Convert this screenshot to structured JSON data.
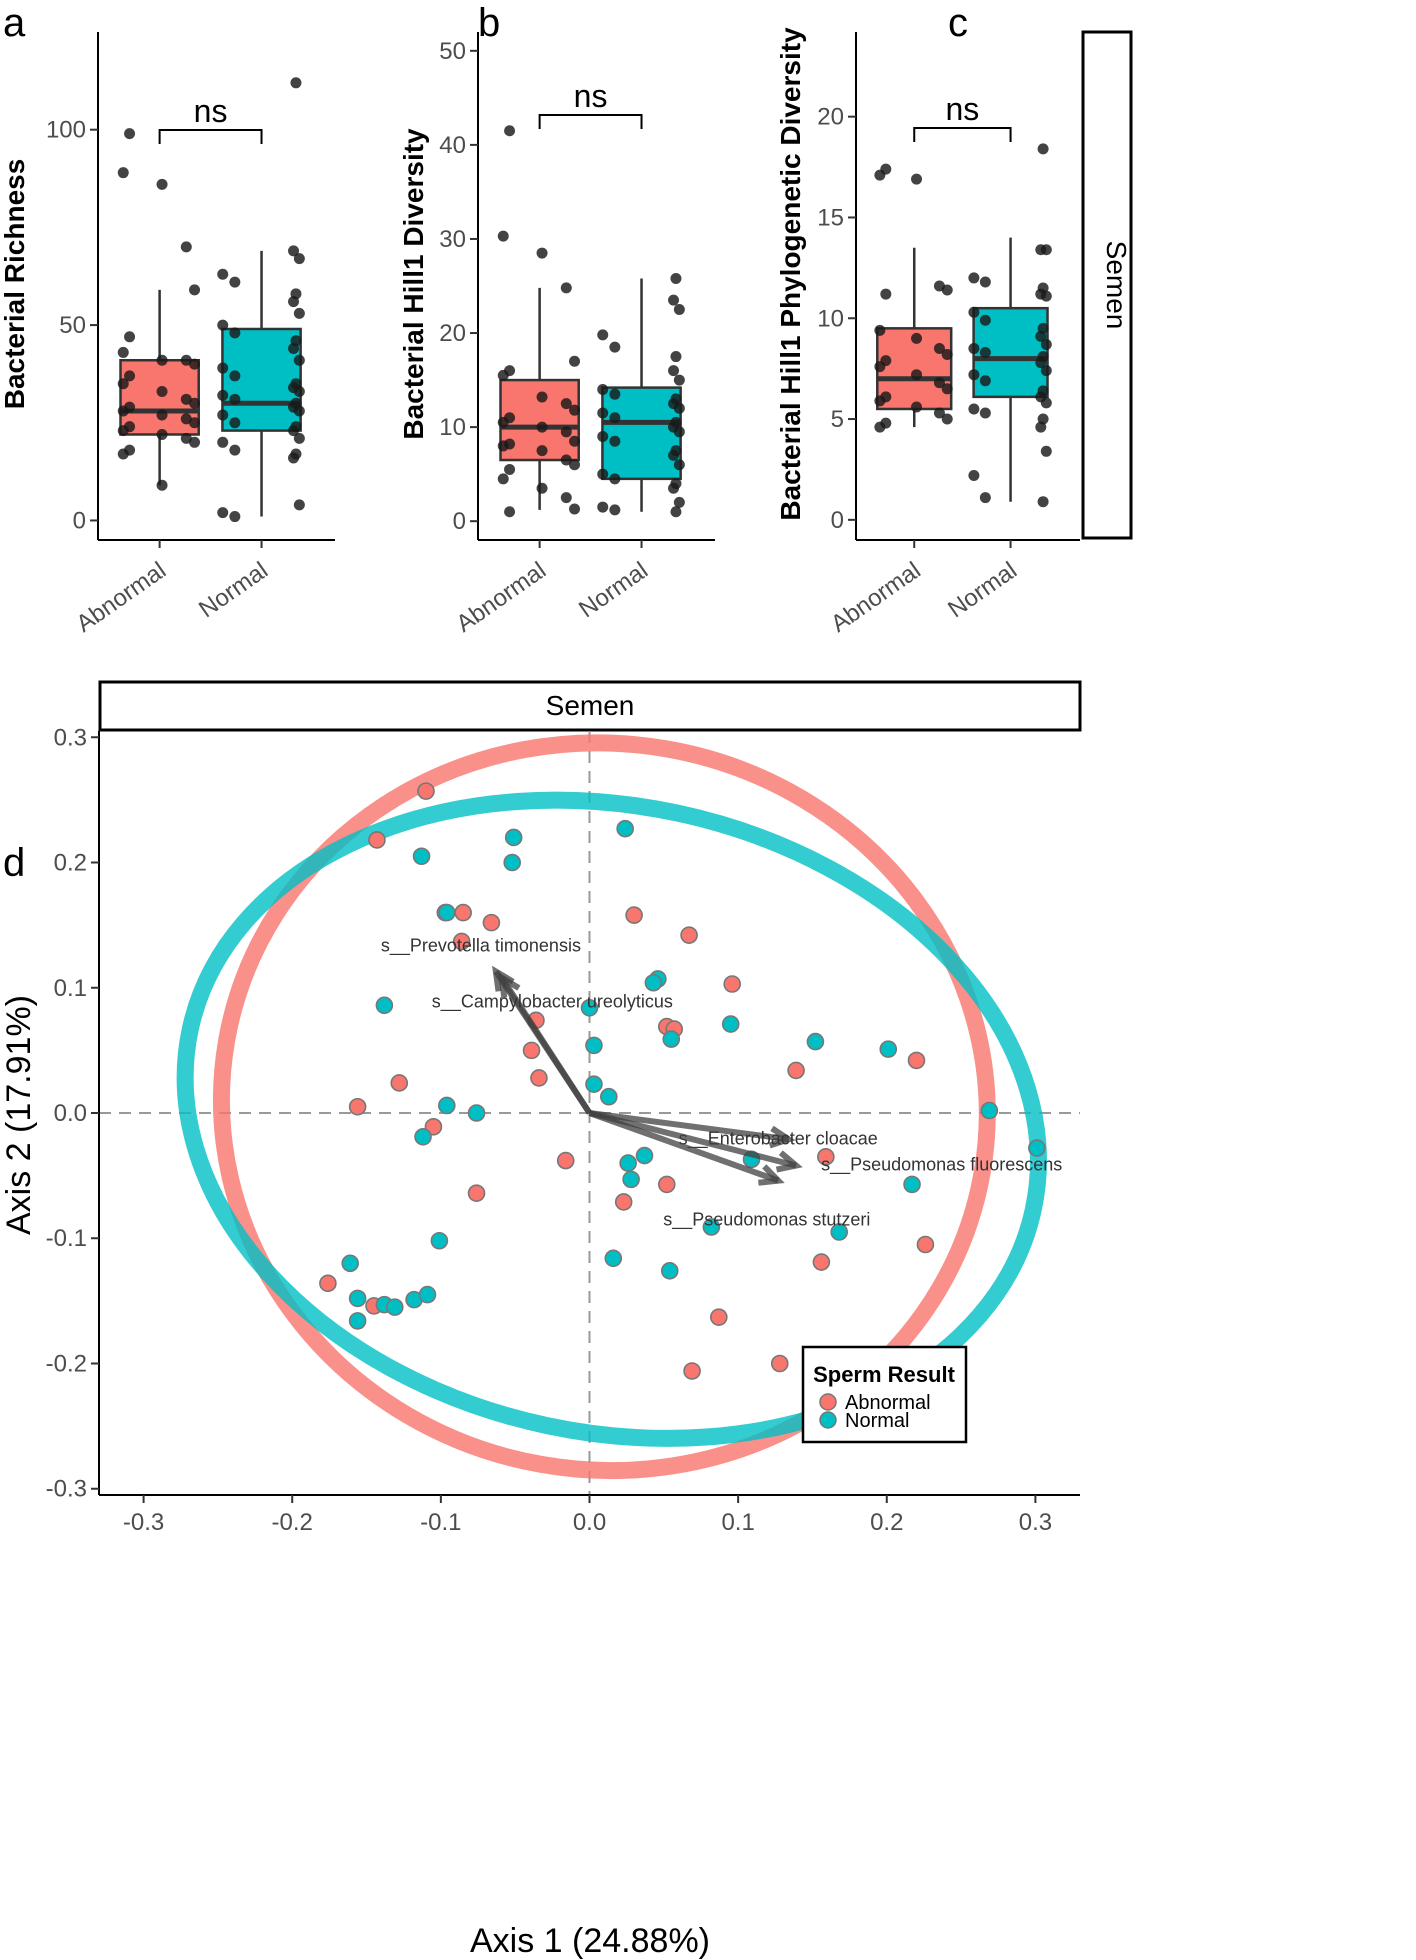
{
  "panels": {
    "a": "a",
    "b": "b",
    "c": "c",
    "d": "d"
  },
  "colors": {
    "abnormal": "#F8766D",
    "normal": "#00BFC4",
    "point": "#1a1a1a",
    "arrow": "#404040"
  },
  "chart_data": [
    {
      "type": "box",
      "panel": "a",
      "ylabel": "Bacterial Richness",
      "ylim": [
        -5,
        125
      ],
      "yticks": [
        0,
        50,
        100
      ],
      "categories": [
        "Abnormal",
        "Normal"
      ],
      "significance": "ns",
      "boxes": [
        {
          "name": "Abnormal",
          "q1": 22,
          "median": 28,
          "q3": 41,
          "whisker_low": 9,
          "whisker_high": 59
        },
        {
          "name": "Normal",
          "q1": 23,
          "median": 30,
          "q3": 49,
          "whisker_low": 1,
          "whisker_high": 69
        }
      ],
      "points": [
        [
          99,
          89,
          86,
          70,
          59,
          47,
          43,
          41,
          41,
          40,
          37,
          35,
          33,
          31,
          30,
          29,
          28,
          27,
          26,
          25,
          24,
          23,
          22,
          21,
          20,
          18,
          17,
          9
        ],
        [
          112,
          69,
          67,
          63,
          61,
          58,
          56,
          53,
          50,
          48,
          46,
          44,
          41,
          39,
          37,
          35,
          34,
          33,
          32,
          31,
          30,
          29,
          28,
          27,
          25,
          24,
          23,
          21,
          20,
          18,
          17,
          16,
          4,
          2,
          1
        ]
      ]
    },
    {
      "type": "box",
      "panel": "b",
      "ylabel": "Bacterial Hill1 Diversity",
      "ylim": [
        -2,
        52
      ],
      "yticks": [
        0,
        10,
        20,
        30,
        40,
        50
      ],
      "categories": [
        "Abnormal",
        "Normal"
      ],
      "significance": "ns",
      "boxes": [
        {
          "name": "Abnormal",
          "q1": 6.5,
          "median": 10,
          "q3": 15,
          "whisker_low": 1.2,
          "whisker_high": 24.8
        },
        {
          "name": "Normal",
          "q1": 4.5,
          "median": 10.5,
          "q3": 14.2,
          "whisker_low": 1,
          "whisker_high": 25.8
        }
      ],
      "points": [
        [
          41.5,
          30.3,
          28.5,
          24.8,
          17,
          16,
          15.5,
          13.2,
          12.5,
          11.8,
          11,
          10.5,
          10,
          9.5,
          8.5,
          8.2,
          8,
          7.5,
          6.5,
          6,
          5.5,
          4.5,
          3.5,
          2.5,
          1.3,
          1
        ],
        [
          25.8,
          23.5,
          22.5,
          19.8,
          18.5,
          17.5,
          16,
          15,
          14,
          13.5,
          13,
          12.5,
          12,
          11.5,
          11,
          10.5,
          10,
          9.5,
          9,
          8.5,
          7.5,
          7,
          6,
          5,
          4.5,
          4,
          3.5,
          2,
          1.5,
          1.2,
          1
        ]
      ]
    },
    {
      "type": "box",
      "panel": "c",
      "ylabel": "Bacterial Hill1 Phylogenetic Diversity",
      "ylim": [
        -1,
        24.2
      ],
      "yticks": [
        0,
        5,
        10,
        15,
        20
      ],
      "categories": [
        "Abnormal",
        "Normal"
      ],
      "significance": "ns",
      "strip": "Semen",
      "boxes": [
        {
          "name": "Abnormal",
          "q1": 5.5,
          "median": 7,
          "q3": 9.5,
          "whisker_low": 4.6,
          "whisker_high": 13.5
        },
        {
          "name": "Normal",
          "q1": 6.1,
          "median": 8,
          "q3": 10.5,
          "whisker_low": 0.9,
          "whisker_high": 14
        }
      ],
      "points": [
        [
          17.4,
          17.1,
          16.9,
          11.6,
          11.4,
          11.2,
          9.4,
          9,
          8.5,
          8.2,
          7.9,
          7.6,
          7.2,
          6.8,
          6.5,
          6.1,
          5.9,
          5.6,
          5.3,
          5,
          4.8,
          4.6
        ],
        [
          18.4,
          13.4,
          13.4,
          12,
          11.8,
          11.5,
          11.2,
          11.1,
          10.3,
          9.9,
          9.5,
          9.1,
          8.7,
          8.5,
          8.3,
          8.1,
          7.8,
          7.4,
          7.2,
          6.9,
          6.4,
          6.1,
          5.8,
          5.5,
          5.3,
          5,
          4.6,
          3.4,
          2.2,
          1.1,
          0.9
        ]
      ]
    },
    {
      "type": "scatter",
      "panel": "d",
      "strip": "Semen",
      "xlabel": "Axis 1 (24.88%)",
      "ylabel": "Axis 2 (17.91%)",
      "xlim": [
        -0.33,
        0.33
      ],
      "ylim": [
        -0.305,
        0.305
      ],
      "xticks": [
        -0.3,
        -0.2,
        -0.1,
        0.0,
        0.1,
        0.2,
        0.3
      ],
      "xtick_labels": [
        "-0.3",
        "-0.2",
        "-0.1",
        "0.0",
        "0.1",
        "0.2",
        "0.3"
      ],
      "yticks": [
        -0.3,
        -0.2,
        -0.1,
        0.0,
        0.1,
        0.2,
        0.3
      ],
      "ytick_labels": [
        "-0.3",
        "-0.2",
        "-0.1",
        "0.0",
        "0.1",
        "0.2",
        "0.3"
      ],
      "legend": {
        "title": "Sperm Result",
        "entries": [
          "Abnormal",
          "Normal"
        ],
        "placement": "bottom-right"
      },
      "ellipses": [
        {
          "name": "Abnormal",
          "cx": 0.01,
          "cy": 0.005,
          "rx": 0.258,
          "ry": 0.29,
          "angle": 10
        },
        {
          "name": "Normal",
          "cx": 0.015,
          "cy": -0.005,
          "rx": 0.29,
          "ry": 0.25,
          "angle": 12
        }
      ],
      "series": [
        {
          "name": "Abnormal",
          "points": [
            [
              -0.11,
              0.257
            ],
            [
              -0.143,
              0.218
            ],
            [
              -0.085,
              0.16
            ],
            [
              -0.097,
              0.16
            ],
            [
              -0.086,
              0.137
            ],
            [
              -0.066,
              0.152
            ],
            [
              -0.036,
              0.074
            ],
            [
              -0.039,
              0.05
            ],
            [
              -0.034,
              0.028
            ],
            [
              -0.128,
              0.024
            ],
            [
              -0.156,
              0.005
            ],
            [
              -0.076,
              -0.064
            ],
            [
              -0.016,
              -0.038
            ],
            [
              -0.176,
              -0.136
            ],
            [
              -0.145,
              -0.154
            ],
            [
              0.03,
              0.158
            ],
            [
              0.067,
              0.142
            ],
            [
              0.096,
              0.103
            ],
            [
              0.052,
              0.069
            ],
            [
              0.057,
              0.067
            ],
            [
              0.139,
              0.034
            ],
            [
              0.159,
              -0.035
            ],
            [
              0.22,
              0.042
            ],
            [
              0.226,
              -0.105
            ],
            [
              0.052,
              -0.057
            ],
            [
              0.023,
              -0.071
            ],
            [
              0.087,
              -0.163
            ],
            [
              0.069,
              -0.206
            ],
            [
              0.128,
              -0.2
            ],
            [
              0.156,
              -0.119
            ],
            [
              -0.105,
              -0.011
            ]
          ]
        },
        {
          "name": "Normal",
          "points": [
            [
              -0.113,
              0.205
            ],
            [
              -0.051,
              0.22
            ],
            [
              -0.052,
              0.2
            ],
            [
              -0.096,
              0.16
            ],
            [
              -0.138,
              0.086
            ],
            [
              -0.096,
              0.006
            ],
            [
              -0.076,
              0.0
            ],
            [
              -0.112,
              -0.019
            ],
            [
              -0.101,
              -0.102
            ],
            [
              -0.161,
              -0.12
            ],
            [
              -0.156,
              -0.148
            ],
            [
              -0.156,
              -0.166
            ],
            [
              -0.138,
              -0.153
            ],
            [
              -0.118,
              -0.149
            ],
            [
              -0.109,
              -0.145
            ],
            [
              -0.131,
              -0.155
            ],
            [
              0.024,
              0.227
            ],
            [
              0.046,
              0.107
            ],
            [
              0.043,
              0.104
            ],
            [
              0.0,
              0.084
            ],
            [
              0.003,
              0.054
            ],
            [
              0.055,
              0.059
            ],
            [
              0.095,
              0.071
            ],
            [
              0.152,
              0.057
            ],
            [
              0.201,
              0.051
            ],
            [
              0.003,
              0.023
            ],
            [
              0.013,
              0.013
            ],
            [
              0.269,
              0.002
            ],
            [
              0.301,
              -0.028
            ],
            [
              0.217,
              -0.057
            ],
            [
              0.168,
              -0.095
            ],
            [
              0.109,
              -0.037
            ],
            [
              0.026,
              -0.04
            ],
            [
              0.037,
              -0.034
            ],
            [
              0.028,
              -0.053
            ],
            [
              0.082,
              -0.091
            ],
            [
              0.016,
              -0.116
            ],
            [
              0.054,
              -0.126
            ]
          ]
        }
      ],
      "arrows": [
        {
          "label": "s__Prevotella timonensis",
          "x": -0.063,
          "y": 0.113
        },
        {
          "label": "s__Campylobacter ureolyticus",
          "x": -0.059,
          "y": 0.108
        },
        {
          "label": "s__Enterobacter cloacae",
          "x": 0.134,
          "y": -0.021
        },
        {
          "label": "s__Pseudomonas fluorescens",
          "x": 0.139,
          "y": -0.042
        },
        {
          "label": "s__Pseudomonas stutzeri",
          "x": 0.127,
          "y": -0.054
        }
      ]
    }
  ]
}
